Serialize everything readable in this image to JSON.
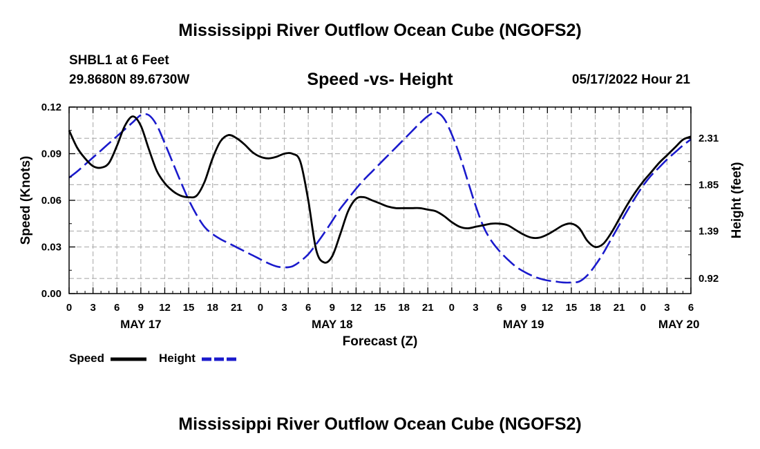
{
  "titles": {
    "main": "Mississippi River Outflow Ocean Cube (NGOFS2)",
    "repeat": "Mississippi River Outflow Ocean Cube (NGOFS2)",
    "station": "SHBL1 at 6 Feet",
    "coords": "29.8680N  89.6730W",
    "subtitle": "Speed -vs- Height",
    "datetime": "05/17/2022 Hour 21"
  },
  "legend": {
    "speed": "Speed",
    "height": "Height"
  },
  "colors": {
    "speed": "#000000",
    "height": "#1a1acc",
    "grid": "#b4b4b4"
  },
  "chart_data": {
    "type": "line",
    "title": "Speed -vs- Height",
    "xlabel": "Forecast (Z)",
    "ylabel": "Speed (Knots)",
    "y2label": "Height (feet)",
    "xlim": [
      0,
      78
    ],
    "ylim": [
      0,
      0.12
    ],
    "y2lim": [
      0.77,
      2.62
    ],
    "yticks": [
      {
        "v": 0,
        "label": "0.00"
      },
      {
        "v": 0.03,
        "label": "0.03"
      },
      {
        "v": 0.06,
        "label": "0.06"
      },
      {
        "v": 0.09,
        "label": "0.09"
      },
      {
        "v": 0.12,
        "label": "0.12"
      }
    ],
    "y2ticks": [
      {
        "v": 0.92,
        "label": "0.92"
      },
      {
        "v": 1.39,
        "label": "1.39"
      },
      {
        "v": 1.85,
        "label": "1.85"
      },
      {
        "v": 2.31,
        "label": "2.31"
      }
    ],
    "xticks": [
      {
        "v": 0,
        "label": "0"
      },
      {
        "v": 3,
        "label": "3"
      },
      {
        "v": 6,
        "label": "6"
      },
      {
        "v": 9,
        "label": "9"
      },
      {
        "v": 12,
        "label": "12"
      },
      {
        "v": 15,
        "label": "15"
      },
      {
        "v": 18,
        "label": "18"
      },
      {
        "v": 21,
        "label": "21"
      },
      {
        "v": 24,
        "label": "0"
      },
      {
        "v": 27,
        "label": "3"
      },
      {
        "v": 30,
        "label": "6"
      },
      {
        "v": 33,
        "label": "9"
      },
      {
        "v": 36,
        "label": "12"
      },
      {
        "v": 39,
        "label": "15"
      },
      {
        "v": 42,
        "label": "18"
      },
      {
        "v": 45,
        "label": "21"
      },
      {
        "v": 48,
        "label": "0"
      },
      {
        "v": 51,
        "label": "3"
      },
      {
        "v": 54,
        "label": "6"
      },
      {
        "v": 57,
        "label": "9"
      },
      {
        "v": 60,
        "label": "12"
      },
      {
        "v": 63,
        "label": "15"
      },
      {
        "v": 66,
        "label": "18"
      },
      {
        "v": 69,
        "label": "21"
      },
      {
        "v": 72,
        "label": "0"
      },
      {
        "v": 75,
        "label": "3"
      },
      {
        "v": 78,
        "label": "6"
      }
    ],
    "day_labels": [
      {
        "v": 9,
        "label": "MAY 17"
      },
      {
        "v": 33,
        "label": "MAY 18"
      },
      {
        "v": 57,
        "label": "MAY 19"
      },
      {
        "v": 76.5,
        "label": "MAY 20"
      }
    ],
    "series": [
      {
        "name": "Speed",
        "axis": "left",
        "style": "solid",
        "x": [
          0,
          1,
          2,
          3,
          4,
          5,
          6,
          7,
          8,
          9,
          10,
          11,
          12,
          13,
          14,
          15,
          16,
          17,
          18,
          19,
          20,
          21,
          22,
          23,
          24,
          25,
          26,
          27,
          28,
          29,
          30,
          31,
          32,
          33,
          34,
          35,
          36,
          37,
          38,
          39,
          40,
          41,
          42,
          43,
          44,
          45,
          46,
          47,
          48,
          49,
          50,
          51,
          52,
          53,
          54,
          55,
          56,
          57,
          58,
          59,
          60,
          61,
          62,
          63,
          64,
          65,
          66,
          67,
          68,
          69,
          70,
          71,
          72,
          73,
          74,
          75,
          76,
          77,
          78
        ],
        "values": [
          0.105,
          0.094,
          0.087,
          0.082,
          0.081,
          0.084,
          0.095,
          0.108,
          0.114,
          0.108,
          0.093,
          0.079,
          0.071,
          0.066,
          0.063,
          0.062,
          0.063,
          0.072,
          0.087,
          0.098,
          0.102,
          0.1,
          0.096,
          0.091,
          0.088,
          0.087,
          0.088,
          0.09,
          0.09,
          0.085,
          0.06,
          0.028,
          0.02,
          0.024,
          0.038,
          0.053,
          0.061,
          0.062,
          0.06,
          0.058,
          0.056,
          0.055,
          0.055,
          0.055,
          0.055,
          0.054,
          0.053,
          0.05,
          0.046,
          0.043,
          0.042,
          0.043,
          0.044,
          0.045,
          0.045,
          0.044,
          0.041,
          0.038,
          0.036,
          0.036,
          0.038,
          0.041,
          0.044,
          0.045,
          0.042,
          0.034,
          0.03,
          0.032,
          0.039,
          0.048,
          0.057,
          0.065,
          0.072,
          0.078,
          0.084,
          0.089,
          0.094,
          0.099,
          0.101
        ]
      },
      {
        "name": "Height",
        "axis": "right",
        "style": "dashed",
        "x": [
          0,
          1,
          2,
          3,
          4,
          5,
          6,
          7,
          8,
          9,
          10,
          11,
          12,
          13,
          14,
          15,
          16,
          17,
          18,
          19,
          20,
          21,
          22,
          23,
          24,
          25,
          26,
          27,
          28,
          29,
          30,
          31,
          32,
          33,
          34,
          35,
          36,
          37,
          38,
          39,
          40,
          41,
          42,
          43,
          44,
          45,
          46,
          47,
          48,
          49,
          50,
          51,
          52,
          53,
          54,
          55,
          56,
          57,
          58,
          59,
          60,
          61,
          62,
          63,
          64,
          65,
          66,
          67,
          68,
          69,
          70,
          71,
          72,
          73,
          74,
          75,
          76,
          77,
          78
        ],
        "values": [
          1.92,
          1.98,
          2.05,
          2.12,
          2.19,
          2.26,
          2.33,
          2.4,
          2.47,
          2.54,
          2.54,
          2.44,
          2.26,
          2.07,
          1.88,
          1.7,
          1.55,
          1.43,
          1.36,
          1.31,
          1.27,
          1.23,
          1.19,
          1.15,
          1.11,
          1.07,
          1.04,
          1.03,
          1.04,
          1.09,
          1.16,
          1.26,
          1.37,
          1.49,
          1.61,
          1.71,
          1.81,
          1.9,
          1.98,
          2.06,
          2.14,
          2.22,
          2.3,
          2.38,
          2.46,
          2.53,
          2.57,
          2.51,
          2.35,
          2.14,
          1.89,
          1.64,
          1.43,
          1.29,
          1.19,
          1.11,
          1.04,
          0.99,
          0.95,
          0.92,
          0.9,
          0.89,
          0.88,
          0.88,
          0.89,
          0.95,
          1.05,
          1.17,
          1.31,
          1.45,
          1.59,
          1.72,
          1.84,
          1.94,
          2.02,
          2.1,
          2.17,
          2.24,
          2.3
        ]
      }
    ]
  }
}
